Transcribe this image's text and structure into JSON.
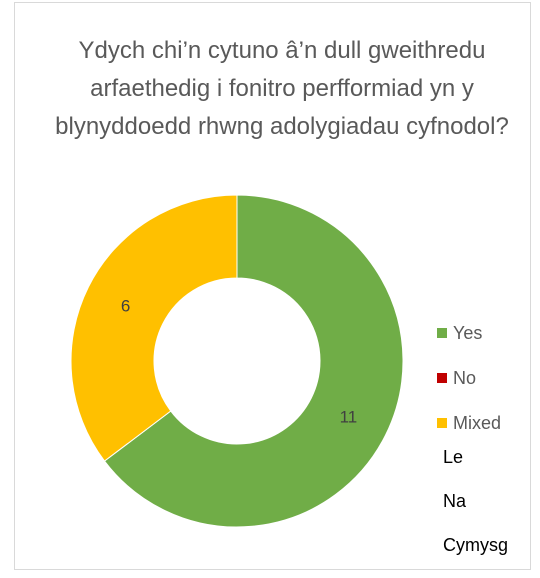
{
  "chart_data": {
    "type": "pie",
    "subtype": "doughnut",
    "title": "Ydych chi’n cytuno â’n dull gweithredu arfaethedig i fonitro perfformiad yn y blynyddoedd rhwng adolygiadau cyfnodol?",
    "legend_position": "right",
    "series": [
      {
        "name": "Yes",
        "value": 11,
        "color": "#70ad47"
      },
      {
        "name": "No",
        "value": 0,
        "color": "#c00000"
      },
      {
        "name": "Mixed",
        "value": 6,
        "color": "#ffc000"
      }
    ],
    "data_labels": [
      "11",
      "0",
      "6"
    ],
    "extra_label_lines": [
      "Le",
      "Na",
      "Cymysg"
    ]
  }
}
